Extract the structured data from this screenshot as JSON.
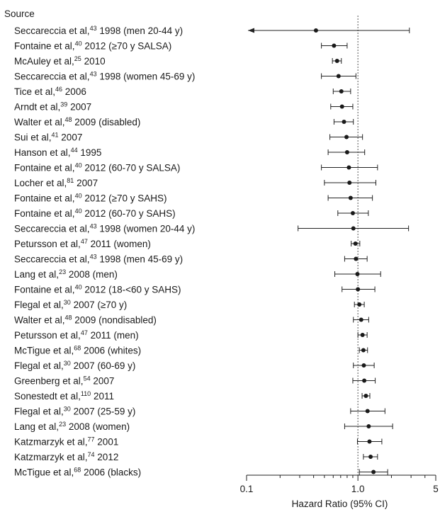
{
  "chart_data": {
    "type": "forest",
    "column_header": "Source",
    "xlabel": "Hazard Ratio (95% CI)",
    "x_scale": "log",
    "xlim": [
      0.1,
      5
    ],
    "x_ticks": [
      {
        "value": 0.1,
        "label": "0.1"
      },
      {
        "value": 1.0,
        "label": "1.0"
      },
      {
        "value": 5,
        "label": "5"
      }
    ],
    "reference_line": 1.0,
    "studies": [
      {
        "author": "Seccareccia et al,",
        "ref": "43",
        "detail": " 1998 (men 20-44 y)",
        "hr": 0.42,
        "lo": 0.1,
        "hi": 2.9,
        "arrow_low": true
      },
      {
        "author": "Fontaine et al,",
        "ref": "40",
        "detail": " 2012 (≥70 y SALSA)",
        "hr": 0.61,
        "lo": 0.47,
        "hi": 0.8
      },
      {
        "author": "McAuley et al,",
        "ref": "25",
        "detail": " 2010",
        "hr": 0.65,
        "lo": 0.59,
        "hi": 0.71
      },
      {
        "author": "Seccareccia et al,",
        "ref": "43",
        "detail": " 1998 (women 45-69 y)",
        "hr": 0.67,
        "lo": 0.47,
        "hi": 0.96
      },
      {
        "author": "Tice et al,",
        "ref": "46",
        "detail": " 2006",
        "hr": 0.71,
        "lo": 0.6,
        "hi": 0.86
      },
      {
        "author": "Arndt et al,",
        "ref": "39",
        "detail": " 2007",
        "hr": 0.72,
        "lo": 0.57,
        "hi": 0.9
      },
      {
        "author": "Walter et al,",
        "ref": "48",
        "detail": " 2009 (disabled)",
        "hr": 0.75,
        "lo": 0.61,
        "hi": 0.91
      },
      {
        "author": "Sui et al,",
        "ref": "41",
        "detail": " 2007",
        "hr": 0.79,
        "lo": 0.56,
        "hi": 1.1
      },
      {
        "author": "Hanson et al,",
        "ref": "44",
        "detail": " 1995",
        "hr": 0.8,
        "lo": 0.54,
        "hi": 1.15
      },
      {
        "author": "Fontaine et al,",
        "ref": "40",
        "detail": " 2012 (60-70 y SALSA)",
        "hr": 0.83,
        "lo": 0.47,
        "hi": 1.5
      },
      {
        "author": "Locher et al,",
        "ref": "81",
        "detail": " 2007",
        "hr": 0.84,
        "lo": 0.5,
        "hi": 1.45
      },
      {
        "author": "Fontaine et al,",
        "ref": "40",
        "detail": " 2012 (≥70 y SAHS)",
        "hr": 0.86,
        "lo": 0.54,
        "hi": 1.35
      },
      {
        "author": "Fontaine et al,",
        "ref": "40",
        "detail": " 2012 (60-70 y SAHS)",
        "hr": 0.9,
        "lo": 0.66,
        "hi": 1.24
      },
      {
        "author": "Seccareccia et al,",
        "ref": "43",
        "detail": " 1998 (women 20-44 y)",
        "hr": 0.91,
        "lo": 0.29,
        "hi": 2.85
      },
      {
        "author": "Petursson et al,",
        "ref": "47",
        "detail": " 2011 (women)",
        "hr": 0.95,
        "lo": 0.87,
        "hi": 1.04
      },
      {
        "author": "Seccareccia et al,",
        "ref": "43",
        "detail": " 1998 (men 45-69 y)",
        "hr": 0.96,
        "lo": 0.76,
        "hi": 1.21
      },
      {
        "author": "Lang et al,",
        "ref": "23",
        "detail": " 2008 (men)",
        "hr": 0.99,
        "lo": 0.62,
        "hi": 1.6
      },
      {
        "author": "Fontaine et al,",
        "ref": "40",
        "detail": " 2012 (18-<60 y SAHS)",
        "hr": 1.0,
        "lo": 0.72,
        "hi": 1.42
      },
      {
        "author": "Flegal et al,",
        "ref": "30",
        "detail": " 2007 (≥70 y)",
        "hr": 1.03,
        "lo": 0.93,
        "hi": 1.14
      },
      {
        "author": "Walter et al,",
        "ref": "48",
        "detail": " 2009 (nondisabled)",
        "hr": 1.07,
        "lo": 0.91,
        "hi": 1.25
      },
      {
        "author": "Petursson et al,",
        "ref": "47",
        "detail": " 2011 (men)",
        "hr": 1.1,
        "lo": 1.0,
        "hi": 1.21
      },
      {
        "author": "McTigue et al,",
        "ref": "68",
        "detail": " 2006 (whites)",
        "hr": 1.12,
        "lo": 1.03,
        "hi": 1.22
      },
      {
        "author": "Flegal et al,",
        "ref": "30",
        "detail": " 2007 (60-69 y)",
        "hr": 1.13,
        "lo": 0.91,
        "hi": 1.4
      },
      {
        "author": "Greenberg et al,",
        "ref": "54",
        "detail": " 2007",
        "hr": 1.14,
        "lo": 0.9,
        "hi": 1.43
      },
      {
        "author": "Sonestedt et al,",
        "ref": "110",
        "detail": " 2011",
        "hr": 1.18,
        "lo": 1.09,
        "hi": 1.28
      },
      {
        "author": "Flegal et al,",
        "ref": "30",
        "detail": " 2007 (25-59 y)",
        "hr": 1.22,
        "lo": 0.86,
        "hi": 1.75
      },
      {
        "author": "Lang et al,",
        "ref": "23",
        "detail": " 2008 (women)",
        "hr": 1.25,
        "lo": 0.76,
        "hi": 2.05
      },
      {
        "author": "Katzmarzyk et al,",
        "ref": "77",
        "detail": " 2001",
        "hr": 1.27,
        "lo": 0.99,
        "hi": 1.64
      },
      {
        "author": "Katzmarzyk et al,",
        "ref": "74",
        "detail": " 2012",
        "hr": 1.3,
        "lo": 1.12,
        "hi": 1.5
      },
      {
        "author": "McTigue et al,",
        "ref": "68",
        "detail": " 2006 (blacks)",
        "hr": 1.38,
        "lo": 1.03,
        "hi": 1.85
      }
    ]
  }
}
